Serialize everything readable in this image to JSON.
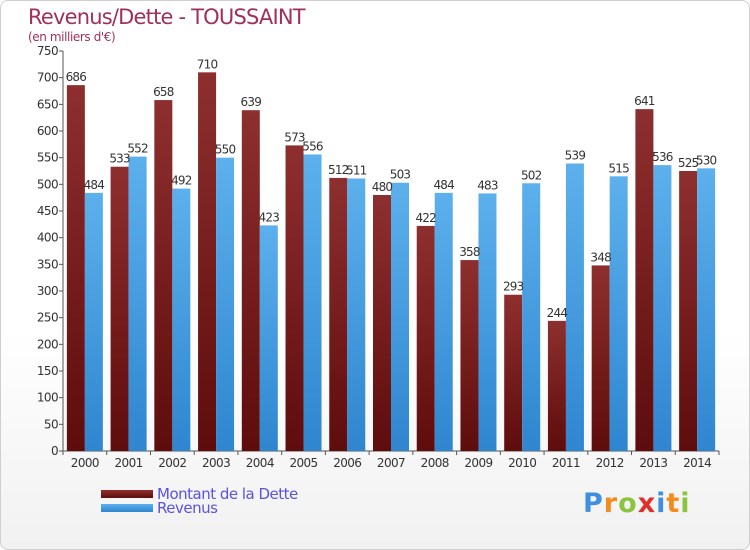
{
  "header": {
    "title": "Revenus/Dette - TOUSSAINT",
    "subtitle": "(en milliers d'€)"
  },
  "legend": {
    "items": [
      "Montant de la Dette",
      "Revenus"
    ]
  },
  "logo": {
    "text": "Proxiti",
    "letters": [
      {
        "char": "P",
        "color": "#3f8fe0"
      },
      {
        "char": "r",
        "color": "#f28c1e"
      },
      {
        "char": "o",
        "color": "#8bc43f"
      },
      {
        "char": "x",
        "color": "#e0302a"
      },
      {
        "char": "i",
        "color": "#3f8fe0"
      },
      {
        "char": "t",
        "color": "#f28c1e"
      },
      {
        "char": "i",
        "color": "#8bc43f"
      }
    ]
  },
  "colors": {
    "debt": "#7a1d1d",
    "revenue": "#4a9fe0",
    "title": "#a0305a",
    "legend_text": "#5a52e0"
  },
  "chart_data": {
    "type": "bar",
    "title": "Revenus/Dette - TOUSSAINT",
    "subtitle": "(en milliers d'€)",
    "categories": [
      "2000",
      "2001",
      "2002",
      "2003",
      "2004",
      "2005",
      "2006",
      "2007",
      "2008",
      "2009",
      "2010",
      "2011",
      "2012",
      "2013",
      "2014"
    ],
    "series": [
      {
        "name": "Montant de la Dette",
        "values": [
          686,
          533,
          658,
          710,
          639,
          573,
          512,
          480,
          422,
          358,
          293,
          244,
          348,
          641,
          525
        ]
      },
      {
        "name": "Revenus",
        "values": [
          484,
          552,
          492,
          550,
          423,
          556,
          511,
          503,
          484,
          483,
          502,
          539,
          515,
          536,
          530
        ]
      }
    ],
    "ylim": [
      0,
      750
    ],
    "yticks": [
      0,
      50,
      100,
      150,
      200,
      250,
      300,
      350,
      400,
      450,
      500,
      550,
      600,
      650,
      700,
      750
    ],
    "grid": false,
    "legend_position": "bottom-left"
  }
}
